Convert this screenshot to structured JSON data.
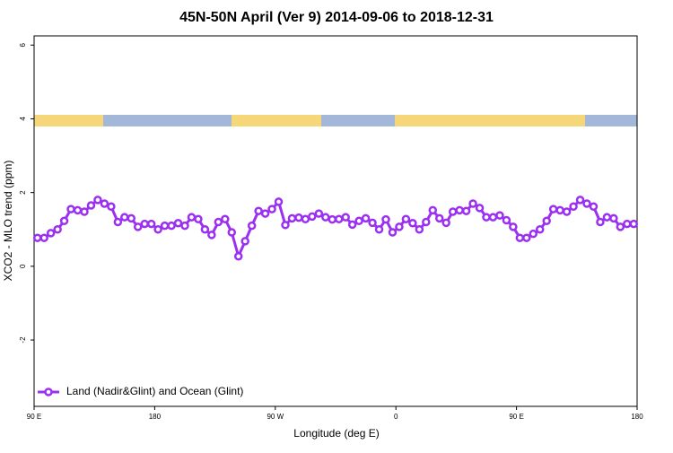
{
  "chart_data": {
    "type": "line",
    "title": "45N-50N April (Ver 9)   2014-09-06 to 2018-12-31",
    "x_label": "Longitude (deg E)",
    "y_label": "XCO2 - MLO trend (ppm)",
    "xlim": [
      90,
      540
    ],
    "ylim": [
      -3.8,
      6.25
    ],
    "xticks": [
      {
        "value": 90,
        "label": "90 E"
      },
      180,
      {
        "value": 270,
        "label": "90 W"
      },
      {
        "value": 360,
        "label": "0"
      },
      {
        "value": 450,
        "label": "90 E"
      },
      {
        "value": 540,
        "label": "180"
      }
    ],
    "yticks": [
      -2,
      0,
      2,
      4,
      6
    ],
    "legend": "bottom-left",
    "x": [
      92.5,
      97.5,
      102.5,
      107.5,
      112.5,
      117.5,
      122.5,
      127.5,
      132.5,
      137.5,
      142.5,
      147.5,
      152.5,
      157.5,
      162.5,
      167.5,
      172.5,
      177.5,
      182.5,
      187.5,
      192.5,
      197.5,
      202.5,
      207.5,
      212.5,
      217.5,
      222.5,
      227.5,
      232.5,
      237.5,
      242.5,
      247.5,
      252.5,
      257.5,
      262.5,
      267.5,
      272.5,
      277.5,
      282.5,
      287.5,
      292.5,
      297.5,
      302.5,
      307.5,
      312.5,
      317.5,
      322.5,
      327.5,
      332.5,
      337.5,
      342.5,
      347.5,
      352.5,
      357.5,
      362.5,
      367.5,
      372.5,
      377.5,
      382.5,
      387.5,
      392.5,
      397.5,
      402.5,
      407.5,
      412.5,
      417.5,
      422.5,
      427.5,
      432.5,
      437.5,
      442.5,
      447.5,
      452.5,
      457.5,
      462.5,
      467.5,
      472.5,
      477.5,
      482.5,
      487.5,
      492.5,
      497.5,
      502.5,
      507.5,
      512.5,
      517.5,
      522.5,
      527.5,
      532.5,
      537.5
    ],
    "series": [
      {
        "name": "Land (Nadir&Glint) and Ocean (Glint)",
        "color": "#9b30f0",
        "values": [
          0.77,
          0.77,
          0.9,
          1.0,
          1.23,
          1.55,
          1.52,
          1.48,
          1.65,
          1.8,
          1.7,
          1.62,
          1.2,
          1.33,
          1.3,
          1.07,
          1.15,
          1.15,
          1.0,
          1.1,
          1.1,
          1.17,
          1.1,
          1.33,
          1.28,
          1.0,
          0.85,
          1.2,
          1.28,
          0.92,
          0.27,
          0.68,
          1.1,
          1.5,
          1.43,
          1.55,
          1.75,
          1.12,
          1.3,
          1.32,
          1.28,
          1.35,
          1.43,
          1.33,
          1.27,
          1.28,
          1.33,
          1.13,
          1.23,
          1.3,
          1.18,
          1.0,
          1.27,
          0.92,
          1.07,
          1.28,
          1.17,
          1.0,
          1.2,
          1.52,
          1.3,
          1.18,
          1.48,
          1.52,
          1.5,
          1.7,
          1.58,
          1.33,
          1.33,
          1.38,
          1.25,
          1.07,
          0.77,
          0.77,
          0.88,
          1.0,
          1.23,
          1.55,
          1.52,
          1.48,
          1.62,
          1.8,
          1.7,
          1.62,
          1.2,
          1.33,
          1.3,
          1.07,
          1.15,
          1.15
        ]
      }
    ]
  }
}
